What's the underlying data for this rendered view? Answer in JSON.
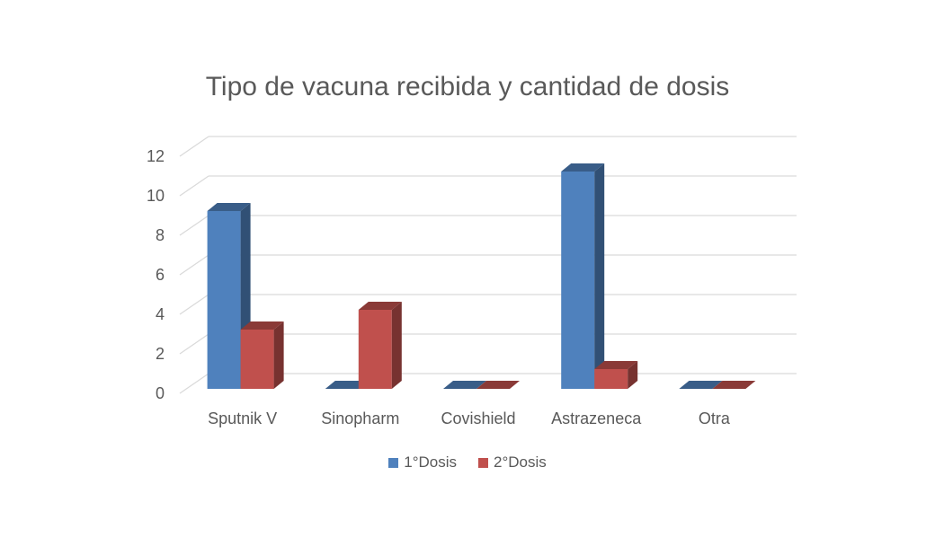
{
  "chart_data": {
    "type": "bar",
    "title": "Tipo de vacuna recibida y cantidad de dosis",
    "categories": [
      "Sputnik V",
      "Sinopharm",
      "Covishield",
      "Astrazeneca",
      "Otra"
    ],
    "series": [
      {
        "name": "1°Dosis",
        "values": [
          9,
          0,
          0,
          11,
          0
        ],
        "color": "#4f81bd"
      },
      {
        "name": "2°Dosis",
        "values": [
          3,
          4,
          0,
          1,
          0
        ],
        "color": "#c0504d"
      }
    ],
    "ylim": [
      0,
      12
    ],
    "yticks": [
      0,
      2,
      4,
      6,
      8,
      10,
      12
    ],
    "grid": true,
    "legend_position": "bottom",
    "style": "3d-column"
  }
}
